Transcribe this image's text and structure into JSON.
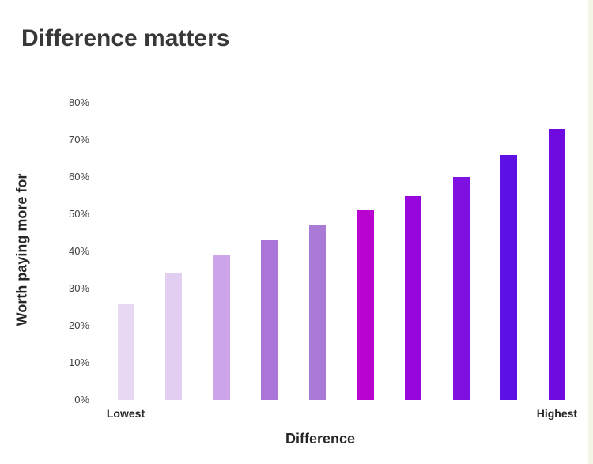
{
  "chart_data": {
    "type": "bar",
    "title": "Difference matters",
    "xlabel": "Difference",
    "ylabel": "Worth paying more for",
    "categories": [
      "Lowest",
      "",
      "",
      "",
      "",
      "",
      "",
      "",
      "",
      "Highest"
    ],
    "values": [
      26,
      34,
      39,
      43,
      47,
      51,
      55,
      60,
      66,
      73
    ],
    "bar_colors": [
      "#e7d8f3",
      "#e1cef1",
      "#cda6ea",
      "#ab75d9",
      "#a97bd7",
      "#b903d1",
      "#9707dd",
      "#7e10e1",
      "#5c10e4",
      "#6f0ae0"
    ],
    "y_ticks": [
      "0%",
      "10%",
      "20%",
      "30%",
      "40%",
      "50%",
      "60%",
      "70%",
      "80%"
    ],
    "ylim": [
      0,
      80
    ],
    "grid": "off",
    "legend": "none",
    "axis_lines": "none"
  },
  "page": {
    "background_color": "#ffffff",
    "edge_strip_color": "#f2f6e6"
  }
}
